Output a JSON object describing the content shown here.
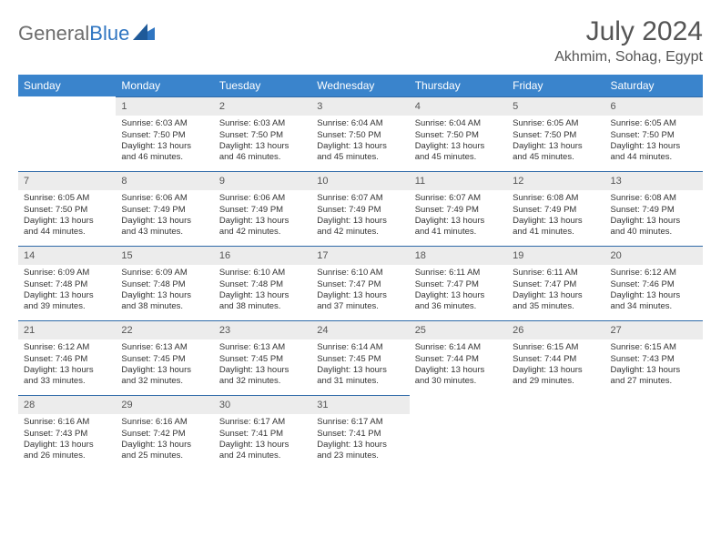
{
  "logo": {
    "word1": "General",
    "word2": "Blue"
  },
  "title": "July 2024",
  "location": "Akhmim, Sohag, Egypt",
  "colors": {
    "header_bg": "#3a84cc",
    "header_text": "#ffffff",
    "daynum_bg": "#ececec",
    "border_top": "#2f6aa8",
    "logo_gray": "#6d6d6d",
    "logo_blue": "#2f75c1"
  },
  "weekdays": [
    "Sunday",
    "Monday",
    "Tuesday",
    "Wednesday",
    "Thursday",
    "Friday",
    "Saturday"
  ],
  "weeks": [
    [
      {
        "num": "",
        "lines": [
          "",
          "",
          "",
          ""
        ]
      },
      {
        "num": "1",
        "lines": [
          "Sunrise: 6:03 AM",
          "Sunset: 7:50 PM",
          "Daylight: 13 hours",
          "and 46 minutes."
        ]
      },
      {
        "num": "2",
        "lines": [
          "Sunrise: 6:03 AM",
          "Sunset: 7:50 PM",
          "Daylight: 13 hours",
          "and 46 minutes."
        ]
      },
      {
        "num": "3",
        "lines": [
          "Sunrise: 6:04 AM",
          "Sunset: 7:50 PM",
          "Daylight: 13 hours",
          "and 45 minutes."
        ]
      },
      {
        "num": "4",
        "lines": [
          "Sunrise: 6:04 AM",
          "Sunset: 7:50 PM",
          "Daylight: 13 hours",
          "and 45 minutes."
        ]
      },
      {
        "num": "5",
        "lines": [
          "Sunrise: 6:05 AM",
          "Sunset: 7:50 PM",
          "Daylight: 13 hours",
          "and 45 minutes."
        ]
      },
      {
        "num": "6",
        "lines": [
          "Sunrise: 6:05 AM",
          "Sunset: 7:50 PM",
          "Daylight: 13 hours",
          "and 44 minutes."
        ]
      }
    ],
    [
      {
        "num": "7",
        "lines": [
          "Sunrise: 6:05 AM",
          "Sunset: 7:50 PM",
          "Daylight: 13 hours",
          "and 44 minutes."
        ]
      },
      {
        "num": "8",
        "lines": [
          "Sunrise: 6:06 AM",
          "Sunset: 7:49 PM",
          "Daylight: 13 hours",
          "and 43 minutes."
        ]
      },
      {
        "num": "9",
        "lines": [
          "Sunrise: 6:06 AM",
          "Sunset: 7:49 PM",
          "Daylight: 13 hours",
          "and 42 minutes."
        ]
      },
      {
        "num": "10",
        "lines": [
          "Sunrise: 6:07 AM",
          "Sunset: 7:49 PM",
          "Daylight: 13 hours",
          "and 42 minutes."
        ]
      },
      {
        "num": "11",
        "lines": [
          "Sunrise: 6:07 AM",
          "Sunset: 7:49 PM",
          "Daylight: 13 hours",
          "and 41 minutes."
        ]
      },
      {
        "num": "12",
        "lines": [
          "Sunrise: 6:08 AM",
          "Sunset: 7:49 PM",
          "Daylight: 13 hours",
          "and 41 minutes."
        ]
      },
      {
        "num": "13",
        "lines": [
          "Sunrise: 6:08 AM",
          "Sunset: 7:49 PM",
          "Daylight: 13 hours",
          "and 40 minutes."
        ]
      }
    ],
    [
      {
        "num": "14",
        "lines": [
          "Sunrise: 6:09 AM",
          "Sunset: 7:48 PM",
          "Daylight: 13 hours",
          "and 39 minutes."
        ]
      },
      {
        "num": "15",
        "lines": [
          "Sunrise: 6:09 AM",
          "Sunset: 7:48 PM",
          "Daylight: 13 hours",
          "and 38 minutes."
        ]
      },
      {
        "num": "16",
        "lines": [
          "Sunrise: 6:10 AM",
          "Sunset: 7:48 PM",
          "Daylight: 13 hours",
          "and 38 minutes."
        ]
      },
      {
        "num": "17",
        "lines": [
          "Sunrise: 6:10 AM",
          "Sunset: 7:47 PM",
          "Daylight: 13 hours",
          "and 37 minutes."
        ]
      },
      {
        "num": "18",
        "lines": [
          "Sunrise: 6:11 AM",
          "Sunset: 7:47 PM",
          "Daylight: 13 hours",
          "and 36 minutes."
        ]
      },
      {
        "num": "19",
        "lines": [
          "Sunrise: 6:11 AM",
          "Sunset: 7:47 PM",
          "Daylight: 13 hours",
          "and 35 minutes."
        ]
      },
      {
        "num": "20",
        "lines": [
          "Sunrise: 6:12 AM",
          "Sunset: 7:46 PM",
          "Daylight: 13 hours",
          "and 34 minutes."
        ]
      }
    ],
    [
      {
        "num": "21",
        "lines": [
          "Sunrise: 6:12 AM",
          "Sunset: 7:46 PM",
          "Daylight: 13 hours",
          "and 33 minutes."
        ]
      },
      {
        "num": "22",
        "lines": [
          "Sunrise: 6:13 AM",
          "Sunset: 7:45 PM",
          "Daylight: 13 hours",
          "and 32 minutes."
        ]
      },
      {
        "num": "23",
        "lines": [
          "Sunrise: 6:13 AM",
          "Sunset: 7:45 PM",
          "Daylight: 13 hours",
          "and 32 minutes."
        ]
      },
      {
        "num": "24",
        "lines": [
          "Sunrise: 6:14 AM",
          "Sunset: 7:45 PM",
          "Daylight: 13 hours",
          "and 31 minutes."
        ]
      },
      {
        "num": "25",
        "lines": [
          "Sunrise: 6:14 AM",
          "Sunset: 7:44 PM",
          "Daylight: 13 hours",
          "and 30 minutes."
        ]
      },
      {
        "num": "26",
        "lines": [
          "Sunrise: 6:15 AM",
          "Sunset: 7:44 PM",
          "Daylight: 13 hours",
          "and 29 minutes."
        ]
      },
      {
        "num": "27",
        "lines": [
          "Sunrise: 6:15 AM",
          "Sunset: 7:43 PM",
          "Daylight: 13 hours",
          "and 27 minutes."
        ]
      }
    ],
    [
      {
        "num": "28",
        "lines": [
          "Sunrise: 6:16 AM",
          "Sunset: 7:43 PM",
          "Daylight: 13 hours",
          "and 26 minutes."
        ]
      },
      {
        "num": "29",
        "lines": [
          "Sunrise: 6:16 AM",
          "Sunset: 7:42 PM",
          "Daylight: 13 hours",
          "and 25 minutes."
        ]
      },
      {
        "num": "30",
        "lines": [
          "Sunrise: 6:17 AM",
          "Sunset: 7:41 PM",
          "Daylight: 13 hours",
          "and 24 minutes."
        ]
      },
      {
        "num": "31",
        "lines": [
          "Sunrise: 6:17 AM",
          "Sunset: 7:41 PM",
          "Daylight: 13 hours",
          "and 23 minutes."
        ]
      },
      {
        "num": "",
        "lines": [
          "",
          "",
          "",
          ""
        ]
      },
      {
        "num": "",
        "lines": [
          "",
          "",
          "",
          ""
        ]
      },
      {
        "num": "",
        "lines": [
          "",
          "",
          "",
          ""
        ]
      }
    ]
  ]
}
